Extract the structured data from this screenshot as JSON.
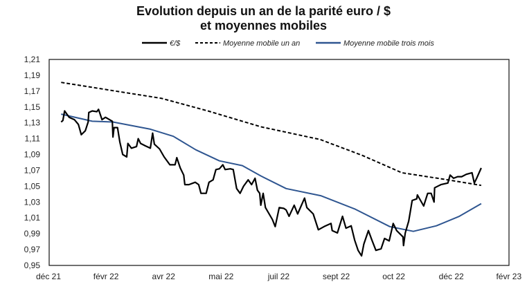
{
  "chart_data": {
    "type": "line",
    "title": "Evolution depuis un an de la parité euro / $",
    "subtitle": "et moyennes mobiles",
    "xlabel": "",
    "ylabel": "",
    "x_tick_labels": [
      "déc 21",
      "févr 22",
      "avr 22",
      "mai 22",
      "juil 22",
      "sept 22",
      "oct 22",
      "déc 22",
      "févr 23"
    ],
    "y_tick_labels": [
      "1,21",
      "1,19",
      "1,17",
      "1,15",
      "1,13",
      "1,11",
      "1,09",
      "1,07",
      "1,05",
      "1,03",
      "1,01",
      "0,99",
      "0,97",
      "0,95"
    ],
    "ylim": [
      0.95,
      1.21
    ],
    "x_note_units": "position along the axis in tick-label steps (0 = déc 21, 8 = févr 23)",
    "grid": false,
    "legend_position": "top",
    "series": [
      {
        "name": "€/$",
        "color": "#000000",
        "style": "solid",
        "points": [
          [
            0.22,
            1.131
          ],
          [
            0.25,
            1.133
          ],
          [
            0.28,
            1.145
          ],
          [
            0.32,
            1.141
          ],
          [
            0.36,
            1.137
          ],
          [
            0.45,
            1.134
          ],
          [
            0.52,
            1.128
          ],
          [
            0.57,
            1.115
          ],
          [
            0.64,
            1.12
          ],
          [
            0.69,
            1.131
          ],
          [
            0.7,
            1.143
          ],
          [
            0.76,
            1.145
          ],
          [
            0.84,
            1.144
          ],
          [
            0.87,
            1.147
          ],
          [
            0.93,
            1.134
          ],
          [
            0.99,
            1.137
          ],
          [
            1.06,
            1.134
          ],
          [
            1.11,
            1.132
          ],
          [
            1.12,
            1.112
          ],
          [
            1.14,
            1.124
          ],
          [
            1.2,
            1.124
          ],
          [
            1.24,
            1.106
          ],
          [
            1.29,
            1.09
          ],
          [
            1.36,
            1.087
          ],
          [
            1.38,
            1.104
          ],
          [
            1.44,
            1.098
          ],
          [
            1.53,
            1.1
          ],
          [
            1.56,
            1.11
          ],
          [
            1.6,
            1.104
          ],
          [
            1.68,
            1.101
          ],
          [
            1.77,
            1.098
          ],
          [
            1.81,
            1.117
          ],
          [
            1.84,
            1.103
          ],
          [
            1.93,
            1.097
          ],
          [
            2.01,
            1.087
          ],
          [
            2.11,
            1.077
          ],
          [
            2.2,
            1.077
          ],
          [
            2.23,
            1.086
          ],
          [
            2.29,
            1.073
          ],
          [
            2.35,
            1.064
          ],
          [
            2.37,
            1.052
          ],
          [
            2.44,
            1.052
          ],
          [
            2.55,
            1.055
          ],
          [
            2.61,
            1.052
          ],
          [
            2.65,
            1.041
          ],
          [
            2.74,
            1.041
          ],
          [
            2.79,
            1.055
          ],
          [
            2.86,
            1.058
          ],
          [
            2.91,
            1.071
          ],
          [
            2.97,
            1.072
          ],
          [
            3.03,
            1.077
          ],
          [
            3.07,
            1.071
          ],
          [
            3.16,
            1.072
          ],
          [
            3.21,
            1.071
          ],
          [
            3.27,
            1.047
          ],
          [
            3.33,
            1.041
          ],
          [
            3.39,
            1.05
          ],
          [
            3.47,
            1.058
          ],
          [
            3.53,
            1.052
          ],
          [
            3.59,
            1.06
          ],
          [
            3.63,
            1.045
          ],
          [
            3.67,
            1.041
          ],
          [
            3.69,
            1.026
          ],
          [
            3.73,
            1.041
          ],
          [
            3.77,
            1.023
          ],
          [
            3.89,
            1.008
          ],
          [
            3.94,
            0.999
          ],
          [
            4.01,
            1.023
          ],
          [
            4.09,
            1.022
          ],
          [
            4.13,
            1.02
          ],
          [
            4.18,
            1.012
          ],
          [
            4.27,
            1.026
          ],
          [
            4.33,
            1.015
          ],
          [
            4.45,
            1.035
          ],
          [
            4.49,
            1.023
          ],
          [
            4.6,
            1.015
          ],
          [
            4.69,
            0.995
          ],
          [
            4.79,
            0.999
          ],
          [
            4.91,
            1.003
          ],
          [
            4.93,
            0.994
          ],
          [
            5.02,
            0.991
          ],
          [
            5.11,
            1.012
          ],
          [
            5.17,
            0.997
          ],
          [
            5.26,
            1.0
          ],
          [
            5.32,
            0.982
          ],
          [
            5.38,
            0.969
          ],
          [
            5.44,
            0.962
          ],
          [
            5.48,
            0.977
          ],
          [
            5.56,
            0.994
          ],
          [
            5.62,
            0.982
          ],
          [
            5.69,
            0.969
          ],
          [
            5.78,
            0.971
          ],
          [
            5.84,
            0.984
          ],
          [
            5.92,
            0.981
          ],
          [
            5.99,
            1.003
          ],
          [
            6.05,
            0.994
          ],
          [
            6.16,
            0.986
          ],
          [
            6.17,
            0.975
          ],
          [
            6.2,
            0.991
          ],
          [
            6.26,
            1.006
          ],
          [
            6.32,
            1.032
          ],
          [
            6.4,
            1.034
          ],
          [
            6.41,
            1.039
          ],
          [
            6.52,
            1.025
          ],
          [
            6.59,
            1.041
          ],
          [
            6.65,
            1.041
          ],
          [
            6.7,
            1.03
          ],
          [
            6.71,
            1.048
          ],
          [
            6.82,
            1.052
          ],
          [
            6.94,
            1.054
          ],
          [
            6.98,
            1.064
          ],
          [
            7.04,
            1.06
          ],
          [
            7.11,
            1.062
          ],
          [
            7.18,
            1.062
          ],
          [
            7.26,
            1.065
          ],
          [
            7.36,
            1.067
          ],
          [
            7.4,
            1.054
          ],
          [
            7.44,
            1.06
          ],
          [
            7.52,
            1.073
          ]
        ]
      },
      {
        "name": "Moyenne mobile un an",
        "color": "#000000",
        "style": "dashed",
        "points": [
          [
            0.22,
            1.181
          ],
          [
            1.17,
            1.17
          ],
          [
            1.96,
            1.161
          ],
          [
            2.77,
            1.145
          ],
          [
            3.69,
            1.125
          ],
          [
            4.72,
            1.109
          ],
          [
            5.45,
            1.089
          ],
          [
            6.14,
            1.067
          ],
          [
            6.94,
            1.058
          ],
          [
            7.52,
            1.051
          ]
        ]
      },
      {
        "name": "Moyenne mobile trois mois",
        "color": "#2e5590",
        "style": "solid",
        "points": [
          [
            0.22,
            1.141
          ],
          [
            0.76,
            1.132
          ],
          [
            1.12,
            1.131
          ],
          [
            1.77,
            1.122
          ],
          [
            2.17,
            1.113
          ],
          [
            2.56,
            1.096
          ],
          [
            2.97,
            1.082
          ],
          [
            3.37,
            1.076
          ],
          [
            3.69,
            1.063
          ],
          [
            4.13,
            1.047
          ],
          [
            4.73,
            1.038
          ],
          [
            5.33,
            1.021
          ],
          [
            5.93,
            0.999
          ],
          [
            6.34,
            0.993
          ],
          [
            6.74,
            1.0
          ],
          [
            7.14,
            1.012
          ],
          [
            7.52,
            1.028
          ]
        ]
      }
    ]
  }
}
